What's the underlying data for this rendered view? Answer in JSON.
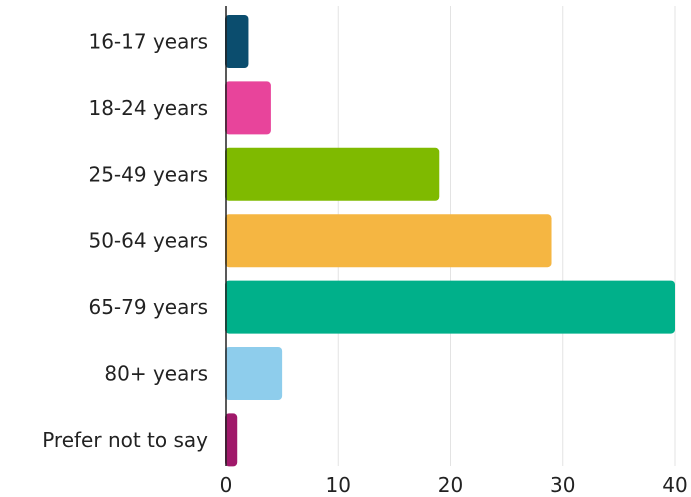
{
  "chart_data": {
    "type": "bar",
    "orientation": "horizontal",
    "categories": [
      "16-17 years",
      "18-24 years",
      "25-49 years",
      "50-64 years",
      "65-79 years",
      "80+ years",
      "Prefer not to say"
    ],
    "values": [
      2,
      4,
      19,
      29,
      40,
      5,
      1
    ],
    "colors": [
      "#0b4d6e",
      "#e8449b",
      "#7fba00",
      "#f5b642",
      "#00b08a",
      "#8ecdec",
      "#a0196a"
    ],
    "xticks": [
      0,
      10,
      20,
      30,
      40
    ],
    "xlim": [
      0,
      40
    ],
    "grid": true,
    "title": "",
    "xlabel": "",
    "ylabel": ""
  }
}
